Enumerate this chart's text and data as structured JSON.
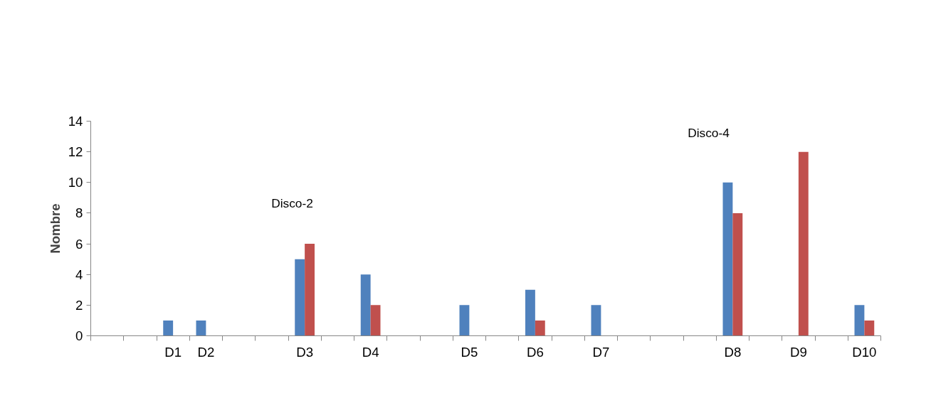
{
  "chart_data": {
    "type": "bar",
    "ylabel": "Nombre",
    "categories": [
      null,
      null,
      "D1",
      "D2",
      null,
      null,
      "D3",
      null,
      "D4",
      null,
      null,
      "D5",
      null,
      "D6",
      null,
      "D7",
      null,
      null,
      null,
      "D8",
      null,
      "D9",
      null,
      "D10"
    ],
    "series": [
      {
        "color": "#4f81bd",
        "values": [
          null,
          null,
          1,
          1,
          null,
          null,
          5,
          null,
          4,
          null,
          null,
          2,
          null,
          3,
          null,
          2,
          null,
          null,
          null,
          10,
          null,
          null,
          null,
          2
        ]
      },
      {
        "color": "#c0504d",
        "values": [
          null,
          null,
          null,
          null,
          null,
          null,
          6,
          null,
          2,
          null,
          null,
          null,
          null,
          1,
          null,
          null,
          null,
          null,
          null,
          8,
          null,
          12,
          null,
          1
        ]
      }
    ],
    "ylim": [
      0,
      14
    ],
    "yticks": [
      0,
      2,
      4,
      6,
      8,
      10,
      12,
      14
    ],
    "grid": false,
    "annotations": [
      "Disco-2",
      "Disco-4"
    ]
  }
}
